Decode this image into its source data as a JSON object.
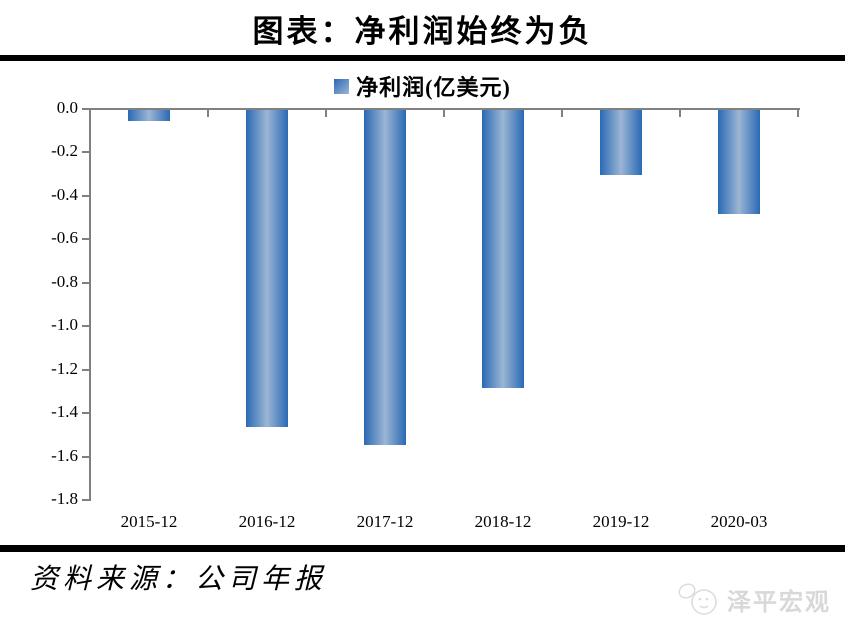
{
  "header": {
    "title": "图表：净利润始终为负"
  },
  "legend": {
    "label": "净利润(亿美元)"
  },
  "chart_data": {
    "type": "bar",
    "title": "净利润始终为负",
    "series_name": "净利润(亿美元)",
    "categories": [
      "2015-12",
      "2016-12",
      "2017-12",
      "2018-12",
      "2019-12",
      "2020-03"
    ],
    "values": [
      -0.05,
      -1.46,
      -1.54,
      -1.28,
      -0.3,
      -0.48
    ],
    "xlabel": "",
    "ylabel": "",
    "ylim": [
      -1.8,
      0.0
    ],
    "ytick_step": 0.2,
    "ytick_labels": [
      "0.0",
      "-0.2",
      "-0.4",
      "-0.6",
      "-0.8",
      "-1.0",
      "-1.2",
      "-1.4",
      "-1.6",
      "-1.8"
    ],
    "grid": false,
    "legend_position": "top",
    "colors": {
      "bar_edge": "#2a6ab4",
      "bar_center": "#9bb5d4",
      "axis": "#808080"
    }
  },
  "footer": {
    "source": "资料来源：公司年报",
    "watermark": "泽平宏观"
  }
}
